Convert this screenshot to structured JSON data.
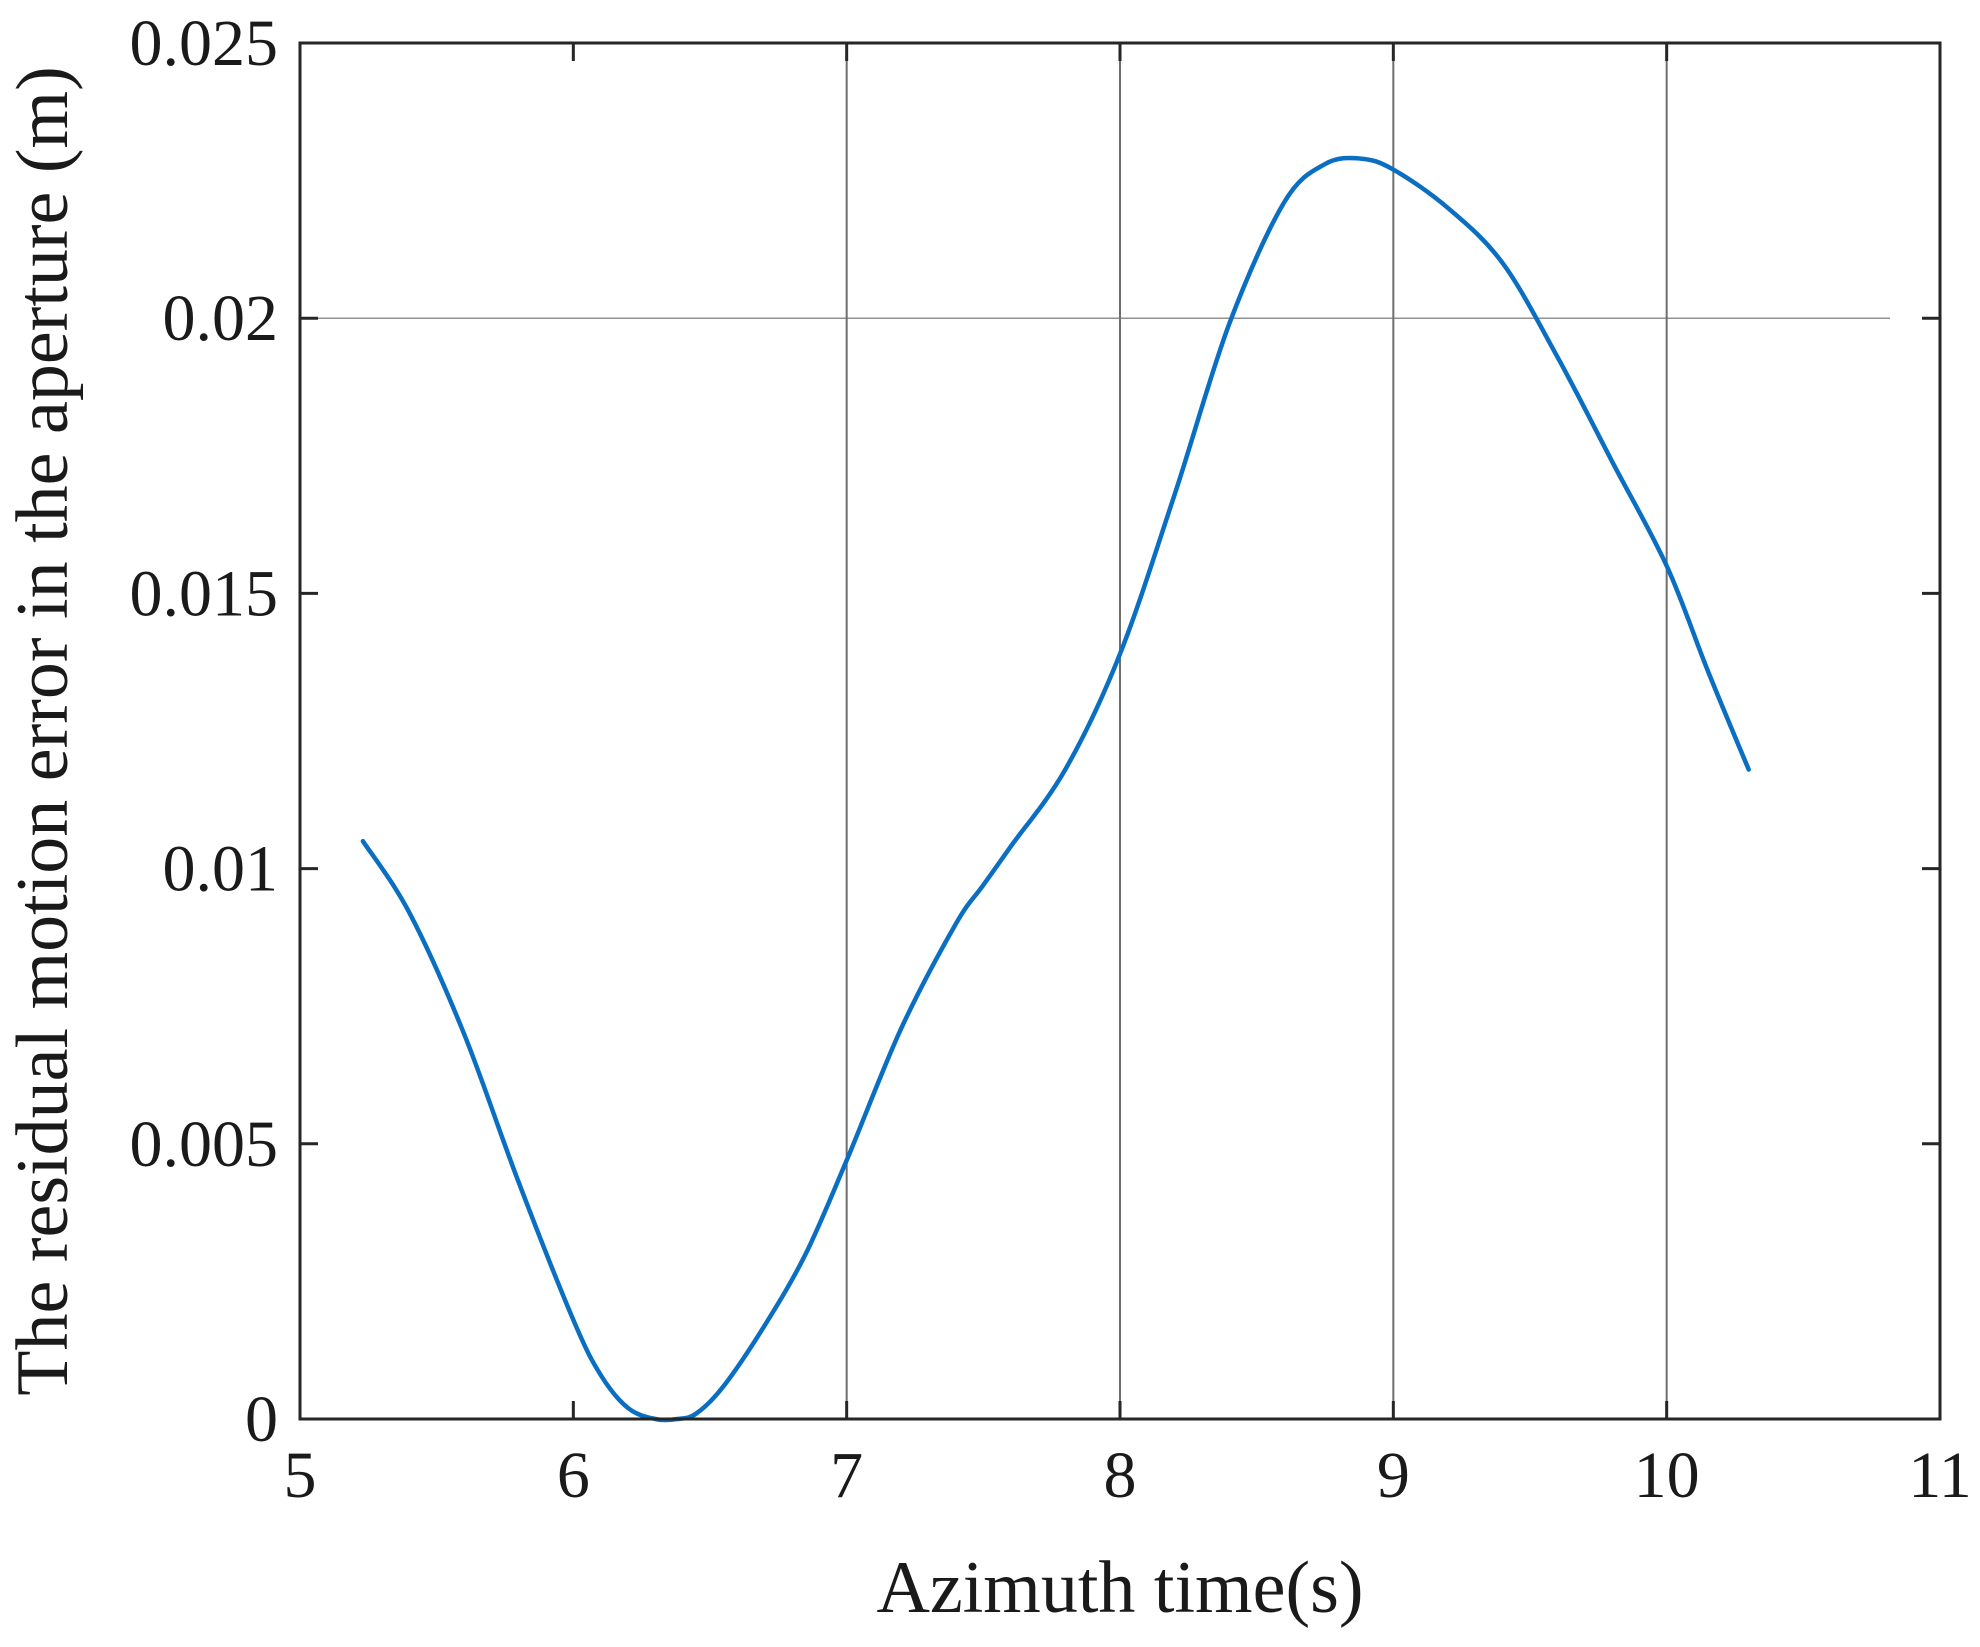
{
  "chart_data": {
    "type": "line",
    "xlabel": "Azimuth time(s)",
    "ylabel": "The residual motion error in the aperture (m)",
    "xlim": [
      5,
      11
    ],
    "ylim": [
      0,
      0.025
    ],
    "xticks": [
      5,
      6,
      7,
      8,
      9,
      10,
      11
    ],
    "yticks": [
      0,
      0.005,
      0.01,
      0.015,
      0.02,
      0.025
    ],
    "xtick_labels": [
      "5",
      "6",
      "7",
      "8",
      "9",
      "10",
      "11"
    ],
    "ytick_labels": [
      "0",
      "0.005",
      "0.01",
      "0.015",
      "0.02",
      "0.025"
    ],
    "grid": {
      "vertical_at_x": [
        7,
        8,
        9,
        10
      ],
      "horizontal_at_y": [
        0.02
      ]
    },
    "line_color": "#0a6fc2",
    "series": [
      {
        "x": [
          5.23,
          5.4,
          5.6,
          5.8,
          6.0,
          6.1,
          6.2,
          6.3,
          6.38,
          6.45,
          6.55,
          6.7,
          6.85,
          7.0,
          7.2,
          7.4,
          7.5,
          7.6,
          7.8,
          8.0,
          8.2,
          8.4,
          8.6,
          8.75,
          8.88,
          9.0,
          9.2,
          9.4,
          9.6,
          9.8,
          10.0,
          10.15,
          10.3
        ],
        "y": [
          0.0105,
          0.0092,
          0.007,
          0.0043,
          0.0018,
          0.0008,
          0.0002,
          0.0,
          0.0,
          0.0001,
          0.0006,
          0.0017,
          0.003,
          0.0047,
          0.0071,
          0.009,
          0.0097,
          0.0104,
          0.0118,
          0.0139,
          0.0168,
          0.0199,
          0.0221,
          0.0228,
          0.0229,
          0.0227,
          0.022,
          0.021,
          0.0193,
          0.0174,
          0.0155,
          0.0136,
          0.0118
        ]
      }
    ]
  }
}
